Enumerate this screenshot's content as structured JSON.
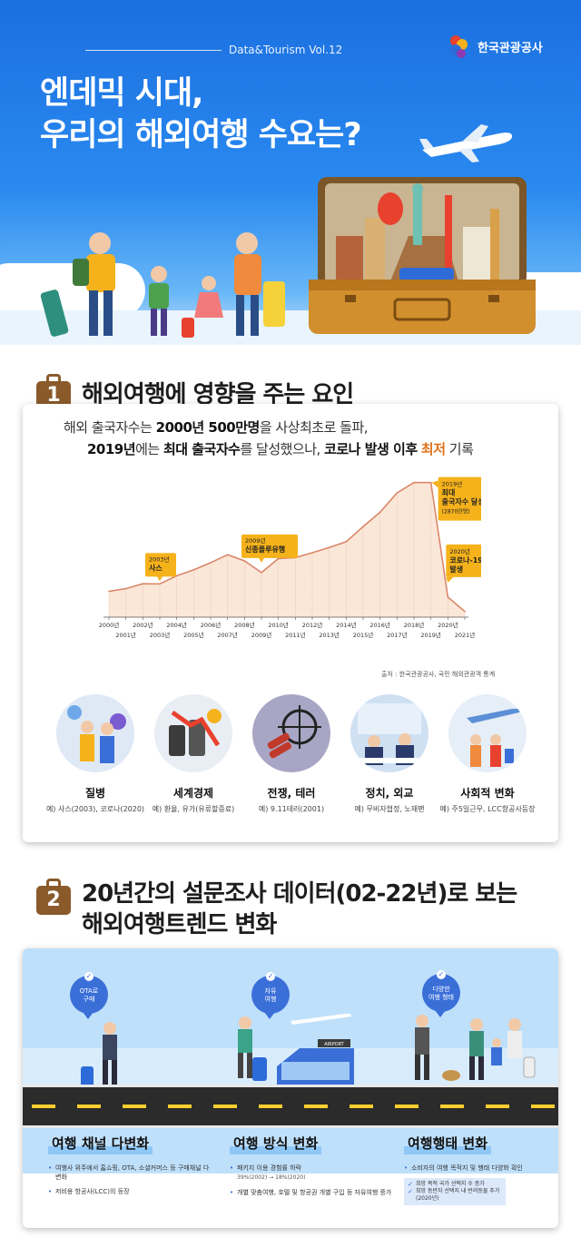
{
  "header": {
    "vol": "Data&Tourism Vol.12",
    "org": "한국관광공사",
    "title_line1": "엔데믹 시대,",
    "title_line2": "우리의 해외여행 수요는?"
  },
  "section1": {
    "num": "1",
    "heading": "해외여행에 영향을 주는 요인",
    "lead1_a": "해외 출국자수는 ",
    "lead1_b": "2000년 500만명",
    "lead1_c": "을 사상최초로 돌파,",
    "lead2_a": "2019년",
    "lead2_b": "에는 ",
    "lead2_c": "최대 출국자수",
    "lead2_d": "를 달성했으나, ",
    "lead2_e": "코로나 발생 이후",
    "lead2_f": "최저",
    "lead2_g": " 기록",
    "source": "출처 : 한국관광공사, 국민 해외관광객 통계",
    "callouts": {
      "sars_year": "2003년",
      "sars": "사스",
      "flu_year": "2009년",
      "flu": "신종플루유행",
      "max_year": "2019년",
      "max_1": "최대",
      "max_2": "출국자수 달성",
      "max_3": "(2870만명)",
      "covid_year": "2020년",
      "covid_1": "코로나-19",
      "covid_2": "발생"
    },
    "factors": [
      {
        "name": "질병",
        "desc": "예) 사스(2003), 코로나(2020)"
      },
      {
        "name": "세계경제",
        "desc": "예) 환율, 유가(유류할증료)"
      },
      {
        "name": "전쟁, 테러",
        "desc": "예) 9.11테러(2001)"
      },
      {
        "name": "정치, 외교",
        "desc": "예) 무비자협정, 노재팬"
      },
      {
        "name": "사회적 변화",
        "desc": "예) 주5일근무, LCC항공사등장"
      }
    ]
  },
  "section2": {
    "num": "2",
    "heading1": "20년간의 설문조사 데이터(02-22년)로 보는",
    "heading2": "해외여행트렌드 변화",
    "bubbles": [
      {
        "l1": "OTA로",
        "l2": "구매"
      },
      {
        "l1": "자유",
        "l2": "여행"
      },
      {
        "l1": "다양한",
        "l2": "여행 형태"
      }
    ],
    "sign": "AIRPORT",
    "cols": [
      {
        "title": "여행 채널 다변화",
        "items": [
          "여행사 위주에서 홈쇼핑, OTA, 소셜커머스 등 구매채널 다변화",
          "저비용 항공사(LCC)의 등장"
        ]
      },
      {
        "title": "여행 방식 변화",
        "items": [
          "패키지 이용 경험률 하락",
          "개별 맞춤여행, 호텔 및 항공권 개별 구입 등 자유여행 증가"
        ],
        "sub": "39%(2002) → 18%(2020)"
      },
      {
        "title": "여행행태 변화",
        "items": [
          "소비자의 여행 목적지 및 행태 다양화 확인"
        ],
        "checks": [
          "희망 목적 국가 선택지 수 증가",
          "희망 동반자 선택지 내 반려동물 추가(2020년)"
        ]
      }
    ]
  },
  "chart_data": {
    "type": "area",
    "title": "",
    "xlabel": "",
    "ylabel": "",
    "x": [
      "2000년",
      "2001년",
      "2002년",
      "2003년",
      "2004년",
      "2005년",
      "2006년",
      "2007년",
      "2008년",
      "2009년",
      "2010년",
      "2011년",
      "2012년",
      "2013년",
      "2014년",
      "2015년",
      "2016년",
      "2017년",
      "2018년",
      "2019년",
      "2020년",
      "2021년"
    ],
    "values": [
      551,
      608,
      712,
      709,
      883,
      1008,
      1161,
      1332,
      1200,
      950,
      1249,
      1269,
      1374,
      1485,
      1608,
      1931,
      2238,
      2650,
      2870,
      2871,
      428,
      122
    ],
    "units": "만명",
    "colors": {
      "line": "#d9876a",
      "fill": "#fbe7d8",
      "callout": "#f5b21b"
    }
  }
}
